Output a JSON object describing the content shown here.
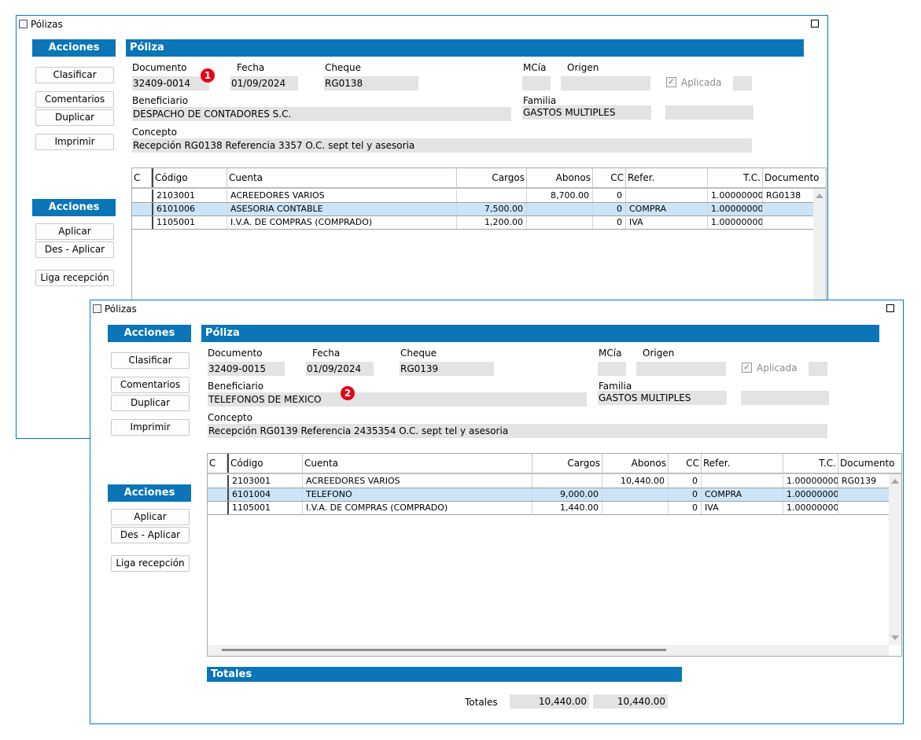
{
  "window1": {
    "title": "Pólizas",
    "actions_header": "Acciones",
    "buttons": [
      "Clasificar",
      "Comentarios",
      "Duplicar",
      "Imprimir"
    ],
    "actions2_header": "Acciones",
    "buttons2": [
      "Aplicar",
      "Des - Aplicar",
      "Liga recepción"
    ],
    "section_title": "Póliza",
    "labels": {
      "documento": "Documento",
      "fecha": "Fecha",
      "cheque": "Cheque",
      "mcia": "MCía",
      "origen": "Origen",
      "aplicada": "Aplicada",
      "beneficiario": "Beneficiario",
      "familia": "Familia",
      "concepto": "Concepto"
    },
    "values": {
      "documento": "32409-0014",
      "fecha": "01/09/2024",
      "cheque": "RG0138",
      "mcia": "",
      "origen": "",
      "beneficiario": "DESPACHO DE CONTADORES S.C.",
      "familia": "GASTOS MULTIPLES",
      "concepto": "Recepción RG0138  Referencia 3357 O.C.  sept tel y asesoria"
    },
    "badge": "1",
    "grid": {
      "headers": [
        "C",
        "Código",
        "Cuenta",
        "Cargos",
        "Abonos",
        "CC",
        "Refer.",
        "T.C.",
        "Documento"
      ],
      "rows": [
        [
          "",
          "2103001",
          "ACREEDORES VARIOS",
          "",
          "8,700.00",
          "0",
          "",
          "1.00000000",
          "RG0138"
        ],
        [
          "",
          "6101006",
          "ASESORIA CONTABLE",
          "7,500.00",
          "",
          "0",
          "COMPRA",
          "1.00000000",
          ""
        ],
        [
          "",
          "1105001",
          "I.V.A. DE COMPRAS (COMPRADO)",
          "1,200.00",
          "",
          "0",
          "IVA",
          "1.00000000",
          ""
        ]
      ]
    }
  },
  "window2": {
    "title": "Pólizas",
    "actions_header": "Acciones",
    "buttons": [
      "Clasificar",
      "Comentarios",
      "Duplicar",
      "Imprimir"
    ],
    "actions2_header": "Acciones",
    "buttons2": [
      "Aplicar",
      "Des - Aplicar",
      "Liga recepción"
    ],
    "section_title": "Póliza",
    "labels": {
      "documento": "Documento",
      "fecha": "Fecha",
      "cheque": "Cheque",
      "mcia": "MCía",
      "origen": "Origen",
      "aplicada": "Aplicada",
      "beneficiario": "Beneficiario",
      "familia": "Familia",
      "concepto": "Concepto"
    },
    "values": {
      "documento": "32409-0015",
      "fecha": "01/09/2024",
      "cheque": "RG0139",
      "mcia": "",
      "origen": "",
      "beneficiario": "TELEFONOS DE MEXICO",
      "familia": "GASTOS MULTIPLES",
      "concepto": "Recepción RG0139  Referencia 2435354 O.C.  sept tel y asesoria"
    },
    "badge": "2",
    "grid": {
      "headers": [
        "C",
        "Código",
        "Cuenta",
        "Cargos",
        "Abonos",
        "CC",
        "Refer.",
        "T.C.",
        "Documento"
      ],
      "rows": [
        [
          "",
          "2103001",
          "ACREEDORES VARIOS",
          "",
          "10,440.00",
          "0",
          "",
          "1.00000000",
          "RG0139"
        ],
        [
          "",
          "6101004",
          "TELEFONO",
          "9,000.00",
          "",
          "0",
          "COMPRA",
          "1.00000000",
          ""
        ],
        [
          "",
          "1105001",
          "I.V.A. DE COMPRAS (COMPRADO)",
          "1,440.00",
          "",
          "0",
          "IVA",
          "1.00000000",
          ""
        ]
      ]
    },
    "totals": {
      "header": "Totales",
      "label": "Totales",
      "cargos": "10,440.00",
      "abonos": "10,440.00"
    }
  },
  "colors": {
    "accent": "#0a75b7",
    "selected_row": "#cce4f7",
    "field_bg": "#e3e3e3",
    "badge": "#e3061a"
  }
}
